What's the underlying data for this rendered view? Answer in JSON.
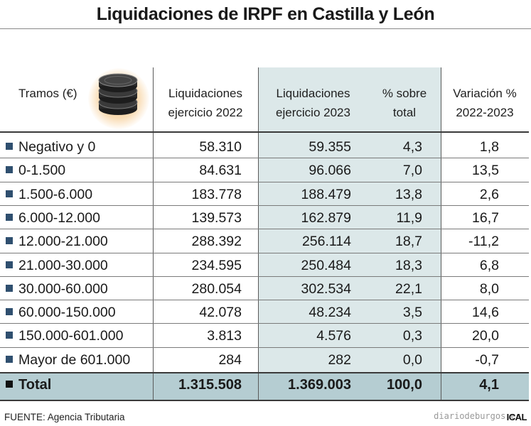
{
  "title": "Liquidaciones de IRPF en Castilla y León",
  "headers": {
    "col0": "Tramos (€)",
    "col1_line1": "Liquidaciones",
    "col1_line2": "ejercicio 2022",
    "col2_line1": "Liquidaciones",
    "col2_line2": "ejercicio 2023",
    "col3_line1": "% sobre",
    "col3_line2": "total",
    "col4_line1": "Variación %",
    "col4_line2": "2022-2023"
  },
  "rows": [
    {
      "tramo": "Negativo y 0",
      "y2022": "58.310",
      "y2023": "59.355",
      "pct": "4,3",
      "var": "1,8"
    },
    {
      "tramo": "0-1.500",
      "y2022": "84.631",
      "y2023": "96.066",
      "pct": "7,0",
      "var": "13,5"
    },
    {
      "tramo": "1.500-6.000",
      "y2022": "183.778",
      "y2023": "188.479",
      "pct": "13,8",
      "var": "2,6"
    },
    {
      "tramo": "6.000-12.000",
      "y2022": "139.573",
      "y2023": "162.879",
      "pct": "11,9",
      "var": "16,7"
    },
    {
      "tramo": "12.000-21.000",
      "y2022": "288.392",
      "y2023": "256.114",
      "pct": "18,7",
      "var": "-11,2"
    },
    {
      "tramo": "21.000-30.000",
      "y2022": "234.595",
      "y2023": "250.484",
      "pct": "18,3",
      "var": "6,8"
    },
    {
      "tramo": "30.000-60.000",
      "y2022": "280.054",
      "y2023": "302.534",
      "pct": "22,1",
      "var": "8,0"
    },
    {
      "tramo": "60.000-150.000",
      "y2022": "42.078",
      "y2023": "48.234",
      "pct": "3,5",
      "var": "14,6"
    },
    {
      "tramo": "150.000-601.000",
      "y2022": "3.813",
      "y2023": "4.576",
      "pct": "0,3",
      "var": "20,0"
    },
    {
      "tramo": "Mayor de 601.000",
      "y2022": "284",
      "y2023": "282",
      "pct": "0,0",
      "var": "-0,7"
    }
  ],
  "total": {
    "tramo": "Total",
    "y2022": "1.315.508",
    "y2023": "1.369.003",
    "pct": "100,0",
    "var": "4,1"
  },
  "source": "FUENTE: Agencia Tributaria",
  "watermark": "diariodeburgos.es",
  "brand": "ICAL",
  "colors": {
    "highlight_column": "#dce8e9",
    "total_row": "#b5cdd2",
    "bullet": "#2f4f6f",
    "coin": "#2a2a2a",
    "glow": "#f6c98e"
  },
  "icons": {
    "header_icon": "coin-stack-icon",
    "row_marker": "square-bullet-icon"
  },
  "chart_data": {
    "type": "table",
    "title": "Liquidaciones de IRPF en Castilla y León",
    "columns": [
      "Tramos (€)",
      "Liquidaciones ejercicio 2022",
      "Liquidaciones ejercicio 2023",
      "% sobre total",
      "Variación % 2022-2023"
    ],
    "categories": [
      "Negativo y 0",
      "0-1.500",
      "1.500-6.000",
      "6.000-12.000",
      "12.000-21.000",
      "21.000-30.000",
      "30.000-60.000",
      "60.000-150.000",
      "150.000-601.000",
      "Mayor de 601.000",
      "Total"
    ],
    "series": [
      {
        "name": "Liquidaciones ejercicio 2022",
        "values": [
          58310,
          84631,
          183778,
          139573,
          288392,
          234595,
          280054,
          42078,
          3813,
          284,
          1315508
        ]
      },
      {
        "name": "Liquidaciones ejercicio 2023",
        "values": [
          59355,
          96066,
          188479,
          162879,
          256114,
          250484,
          302534,
          48234,
          4576,
          282,
          1369003
        ]
      },
      {
        "name": "% sobre total",
        "values": [
          4.3,
          7.0,
          13.8,
          11.9,
          18.7,
          18.3,
          22.1,
          3.5,
          0.3,
          0.0,
          100.0
        ]
      },
      {
        "name": "Variación % 2022-2023",
        "values": [
          1.8,
          13.5,
          2.6,
          16.7,
          -11.2,
          6.8,
          8.0,
          14.6,
          20.0,
          -0.7,
          4.1
        ]
      }
    ]
  }
}
